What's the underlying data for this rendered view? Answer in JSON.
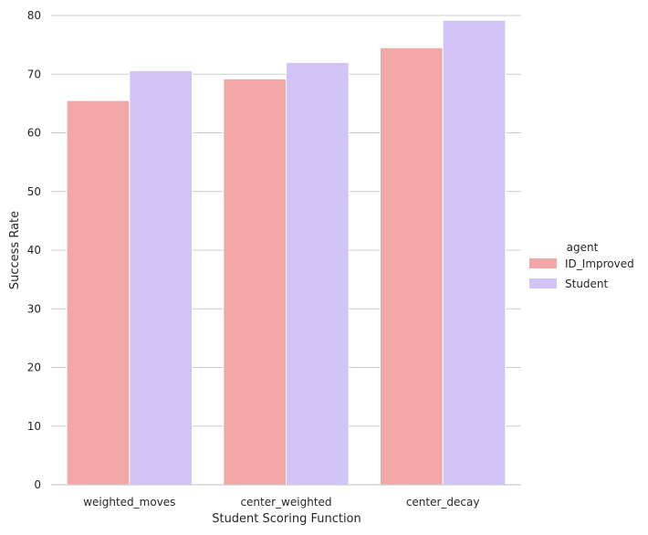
{
  "chart_data": {
    "type": "bar",
    "categories": [
      "weighted_moves",
      "center_weighted",
      "center_decay"
    ],
    "series": [
      {
        "name": "ID_Improved",
        "values": [
          65.5,
          69.2,
          74.5
        ],
        "color": "#f2a6a6"
      },
      {
        "name": "Student",
        "values": [
          70.6,
          72.0,
          79.2
        ],
        "color": "#d3c4f8"
      }
    ],
    "xlabel": "Student Scoring Function",
    "ylabel": "Success Rate",
    "ylim": [
      0,
      80
    ],
    "yticks": [
      "0",
      "10",
      "20",
      "30",
      "40",
      "50",
      "60",
      "70",
      "80"
    ],
    "legend": {
      "title": "agent",
      "placement": "right"
    },
    "grid": "horizontal"
  }
}
